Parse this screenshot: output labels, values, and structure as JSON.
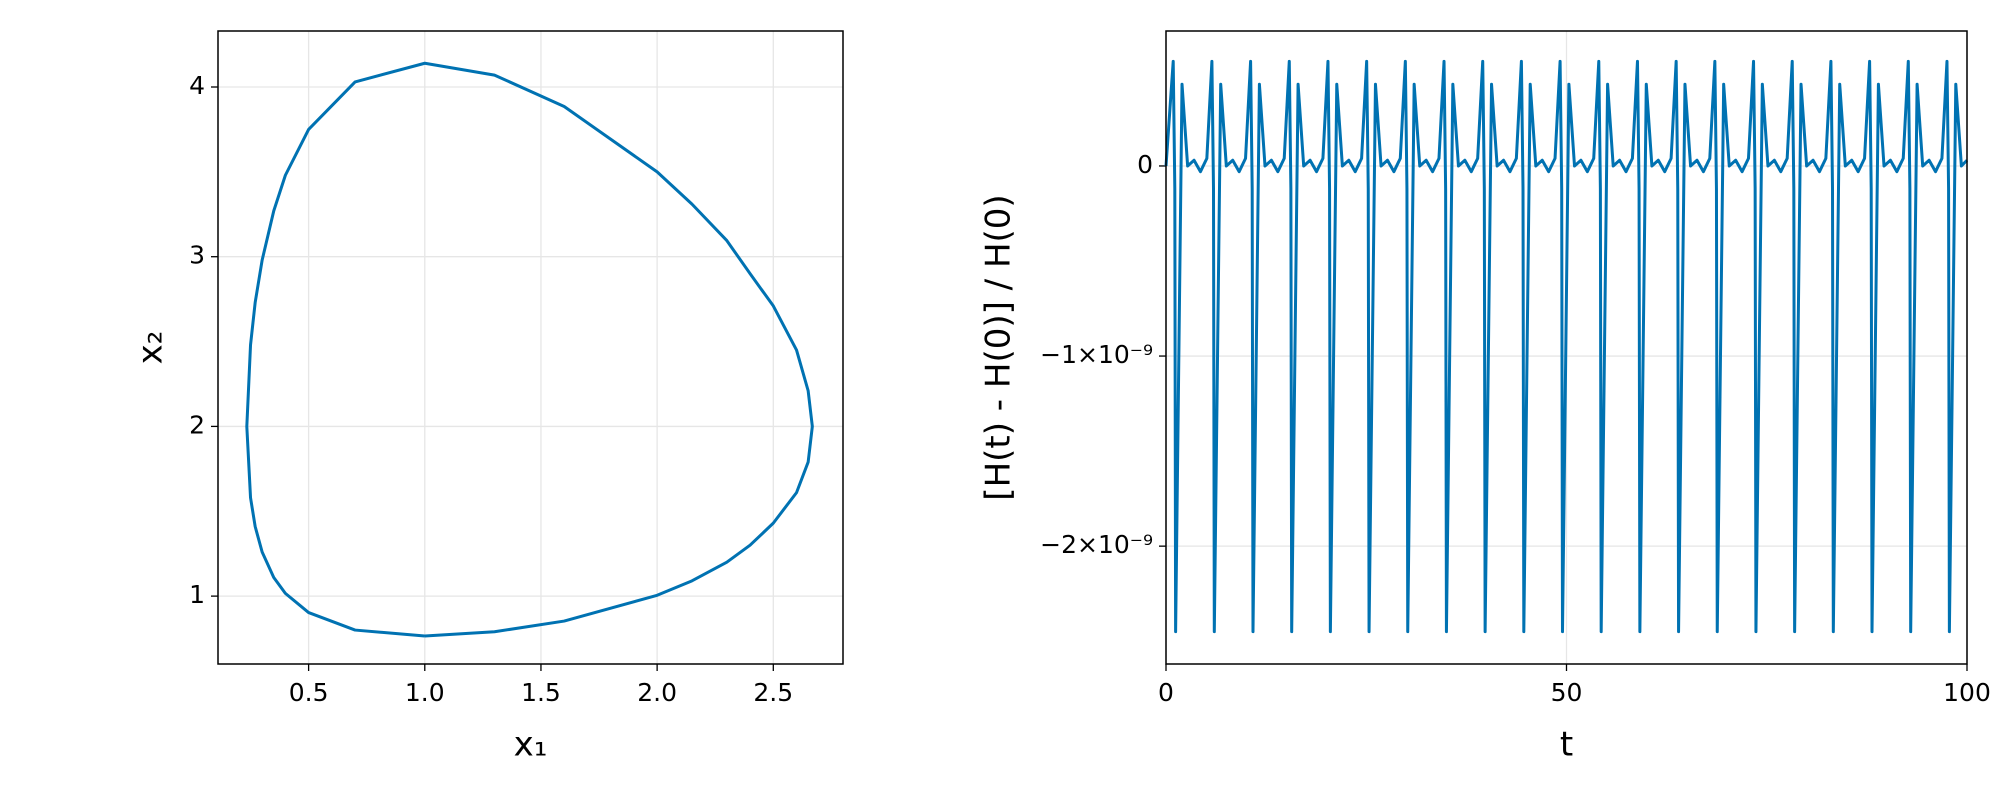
{
  "chart_data": [
    {
      "type": "line",
      "xlabel": "x₁",
      "ylabel": "x₂",
      "color": "#0072b2",
      "grid": true,
      "xlim": [
        0.11,
        2.8
      ],
      "ylim": [
        0.6,
        4.33
      ],
      "xticks": [
        0.5,
        {
          "value": 1.0,
          "label": "1.0"
        },
        1.5,
        {
          "value": 2.0,
          "label": "2.0"
        },
        2.5
      ],
      "yticks": [
        1,
        2,
        3,
        4
      ],
      "x": [
        1.0,
        1.3,
        1.6,
        2.0,
        2.15,
        2.3,
        2.4,
        2.5,
        2.6,
        2.65,
        2.668,
        2.65,
        2.6,
        2.5,
        2.4,
        2.3,
        2.15,
        2.0,
        1.6,
        1.3,
        1.0,
        0.7,
        0.5,
        0.4,
        0.35,
        0.3,
        0.27,
        0.25,
        0.234,
        0.25,
        0.27,
        0.3,
        0.35,
        0.4,
        0.5,
        0.7,
        1.0
      ],
      "values": [
        0.765,
        0.79,
        0.853,
        1.005,
        1.09,
        1.2,
        1.3,
        1.43,
        1.61,
        1.79,
        2,
        2.21,
        2.45,
        2.71,
        2.9,
        3.095,
        3.31,
        3.5,
        3.885,
        4.07,
        4.14,
        4.03,
        3.75,
        3.48,
        3.27,
        2.98,
        2.73,
        2.48,
        2,
        1.58,
        1.41,
        1.26,
        1.11,
        1.016,
        0.903,
        0.8,
        0.765
      ]
    },
    {
      "type": "line",
      "xlabel": "t",
      "ylabel": "[H(t) - H(0)] / H(0)",
      "color": "#0072b2",
      "grid": true,
      "xlim": [
        0,
        100
      ],
      "ylim": [
        -2.62e-09,
        7.1e-10
      ],
      "xticks": [
        0,
        50,
        100
      ],
      "yticks": [
        0,
        {
          "value": -1e-09,
          "label": "−1×10⁻⁹"
        },
        {
          "value": -2e-09,
          "label": "−2×10⁻⁹"
        }
      ],
      "x": [
        0,
        0.9,
        1.1,
        1.2,
        2.0,
        2.7,
        3.5,
        4.3,
        5.1,
        5.73,
        5.93,
        6.03,
        6.83,
        7.53,
        8.33,
        9.13,
        9.93,
        10.56,
        10.76,
        10.86,
        11.66,
        12.36,
        13.16,
        13.96,
        14.76,
        15.39,
        15.59,
        15.69,
        16.49,
        17.19,
        17.99,
        18.79,
        19.59,
        20.22,
        20.42,
        20.52,
        21.32,
        22.02,
        22.82,
        23.62,
        24.42,
        25.05,
        25.25,
        25.35,
        26.15,
        26.85,
        27.65,
        28.45,
        29.25,
        29.88,
        30.08,
        30.18,
        30.98,
        31.68,
        32.48,
        33.28,
        34.08,
        34.71,
        34.91,
        35.01,
        35.81,
        36.51,
        37.31,
        38.11,
        38.91,
        39.54,
        39.74,
        39.84,
        40.64,
        41.34,
        42.14,
        42.94,
        43.74,
        44.37,
        44.57,
        44.67,
        45.47,
        46.17,
        46.97,
        47.77,
        48.57,
        49.2,
        49.4,
        49.5,
        50.3,
        51.0,
        51.8,
        52.6,
        53.4,
        54.03,
        54.23,
        54.33,
        55.13,
        55.83,
        56.63,
        57.43,
        58.23,
        58.86,
        59.06,
        59.16,
        59.96,
        60.66,
        61.46,
        62.26,
        63.06,
        63.69,
        63.89,
        63.99,
        64.79,
        65.49,
        66.29,
        67.09,
        67.89,
        68.52,
        68.72,
        68.82,
        69.62,
        70.32,
        71.12,
        71.92,
        72.72,
        73.35,
        73.55,
        73.65,
        74.45,
        75.15,
        75.95,
        76.75,
        77.55,
        78.18,
        78.38,
        78.48,
        79.28,
        79.98,
        80.78,
        81.58,
        82.38,
        83.01,
        83.21,
        83.31,
        84.11,
        84.81,
        85.61,
        86.41,
        87.21,
        87.84,
        88.04,
        88.14,
        88.94,
        89.64,
        90.44,
        91.24,
        92.04,
        92.67,
        92.87,
        92.97,
        93.77,
        94.47,
        95.27,
        96.07,
        96.87,
        97.5,
        97.7,
        97.8,
        98.6,
        99.3,
        100
      ],
      "values": [
        0,
        5.5e-10,
        -1.2e-10,
        -2.45e-09,
        4.3e-10,
        0,
        3e-11,
        -3e-11,
        4e-11,
        5.5e-10,
        -1.2e-10,
        -2.45e-09,
        4.3e-10,
        0,
        3e-11,
        -3e-11,
        4e-11,
        5.5e-10,
        -1.2e-10,
        -2.45e-09,
        4.3e-10,
        0,
        3e-11,
        -3e-11,
        4e-11,
        5.5e-10,
        -1.2e-10,
        -2.45e-09,
        4.3e-10,
        0,
        3e-11,
        -3e-11,
        4e-11,
        5.5e-10,
        -1.2e-10,
        -2.45e-09,
        4.3e-10,
        0,
        3e-11,
        -3e-11,
        4e-11,
        5.5e-10,
        -1.2e-10,
        -2.45e-09,
        4.3e-10,
        0,
        3e-11,
        -3e-11,
        4e-11,
        5.5e-10,
        -1.2e-10,
        -2.45e-09,
        4.3e-10,
        0,
        3e-11,
        -3e-11,
        4e-11,
        5.5e-10,
        -1.2e-10,
        -2.45e-09,
        4.3e-10,
        0,
        3e-11,
        -3e-11,
        4e-11,
        5.5e-10,
        -1.2e-10,
        -2.45e-09,
        4.3e-10,
        0,
        3e-11,
        -3e-11,
        4e-11,
        5.5e-10,
        -1.2e-10,
        -2.45e-09,
        4.3e-10,
        0,
        3e-11,
        -3e-11,
        4e-11,
        5.5e-10,
        -1.2e-10,
        -2.45e-09,
        4.3e-10,
        0,
        3e-11,
        -3e-11,
        4e-11,
        5.5e-10,
        -1.2e-10,
        -2.45e-09,
        4.3e-10,
        0,
        3e-11,
        -3e-11,
        4e-11,
        5.5e-10,
        -1.2e-10,
        -2.45e-09,
        4.3e-10,
        0,
        3e-11,
        -3e-11,
        4e-11,
        5.5e-10,
        -1.2e-10,
        -2.45e-09,
        4.3e-10,
        0,
        3e-11,
        -3e-11,
        4e-11,
        5.5e-10,
        -1.2e-10,
        -2.45e-09,
        4.3e-10,
        0,
        3e-11,
        -3e-11,
        4e-11,
        5.5e-10,
        -1.2e-10,
        -2.45e-09,
        4.3e-10,
        0,
        3e-11,
        -3e-11,
        4e-11,
        5.5e-10,
        -1.2e-10,
        -2.45e-09,
        4.3e-10,
        0,
        3e-11,
        -3e-11,
        4e-11,
        5.5e-10,
        -1.2e-10,
        -2.45e-09,
        4.3e-10,
        0,
        3e-11,
        -3e-11,
        4e-11,
        5.5e-10,
        -1.2e-10,
        -2.45e-09,
        4.3e-10,
        0,
        3e-11,
        -3e-11,
        4e-11,
        5.5e-10,
        -1.2e-10,
        -2.45e-09,
        4.3e-10,
        0,
        3e-11,
        -3e-11,
        4e-11,
        5.5e-10,
        -1.2e-10,
        -2.45e-09,
        4.3e-10,
        0,
        3e-11
      ]
    }
  ]
}
